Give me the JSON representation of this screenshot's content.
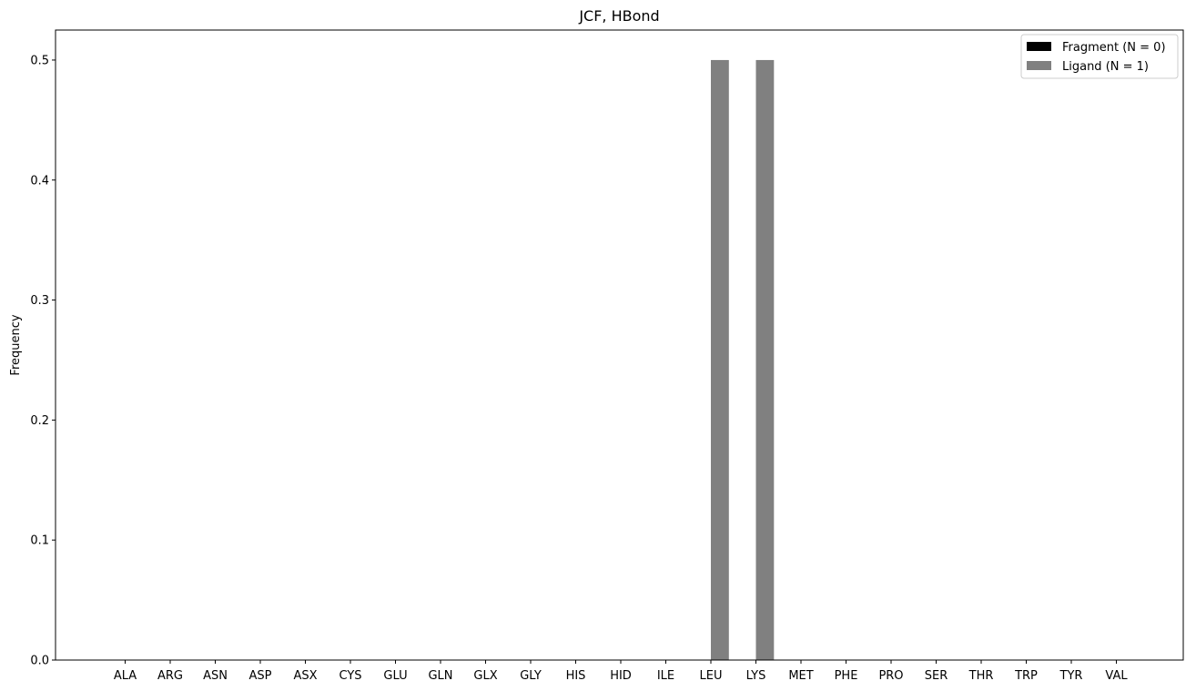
{
  "chart_data": {
    "type": "bar",
    "title": "JCF, HBond",
    "xlabel": "",
    "ylabel": "Frequency",
    "ylim": [
      0,
      0.525
    ],
    "yticks": [
      "0.0",
      "0.1",
      "0.2",
      "0.3",
      "0.4",
      "0.5"
    ],
    "grid": false,
    "legend_position": "top-right",
    "categories": [
      "ALA",
      "ARG",
      "ASN",
      "ASP",
      "ASX",
      "CYS",
      "GLU",
      "GLN",
      "GLX",
      "GLY",
      "HIS",
      "HID",
      "ILE",
      "LEU",
      "LYS",
      "MET",
      "PHE",
      "PRO",
      "SER",
      "THR",
      "TRP",
      "TYR",
      "VAL"
    ],
    "series": [
      {
        "name": "Fragment (N = 0)",
        "color": "#000000",
        "values": [
          0,
          0,
          0,
          0,
          0,
          0,
          0,
          0,
          0,
          0,
          0,
          0,
          0,
          0,
          0,
          0,
          0,
          0,
          0,
          0,
          0,
          0,
          0
        ]
      },
      {
        "name": "Ligand (N = 1)",
        "color": "#808080",
        "values": [
          0,
          0,
          0,
          0,
          0,
          0,
          0,
          0,
          0,
          0,
          0,
          0,
          0,
          0.5,
          0.5,
          0,
          0,
          0,
          0,
          0,
          0,
          0,
          0
        ]
      }
    ]
  }
}
